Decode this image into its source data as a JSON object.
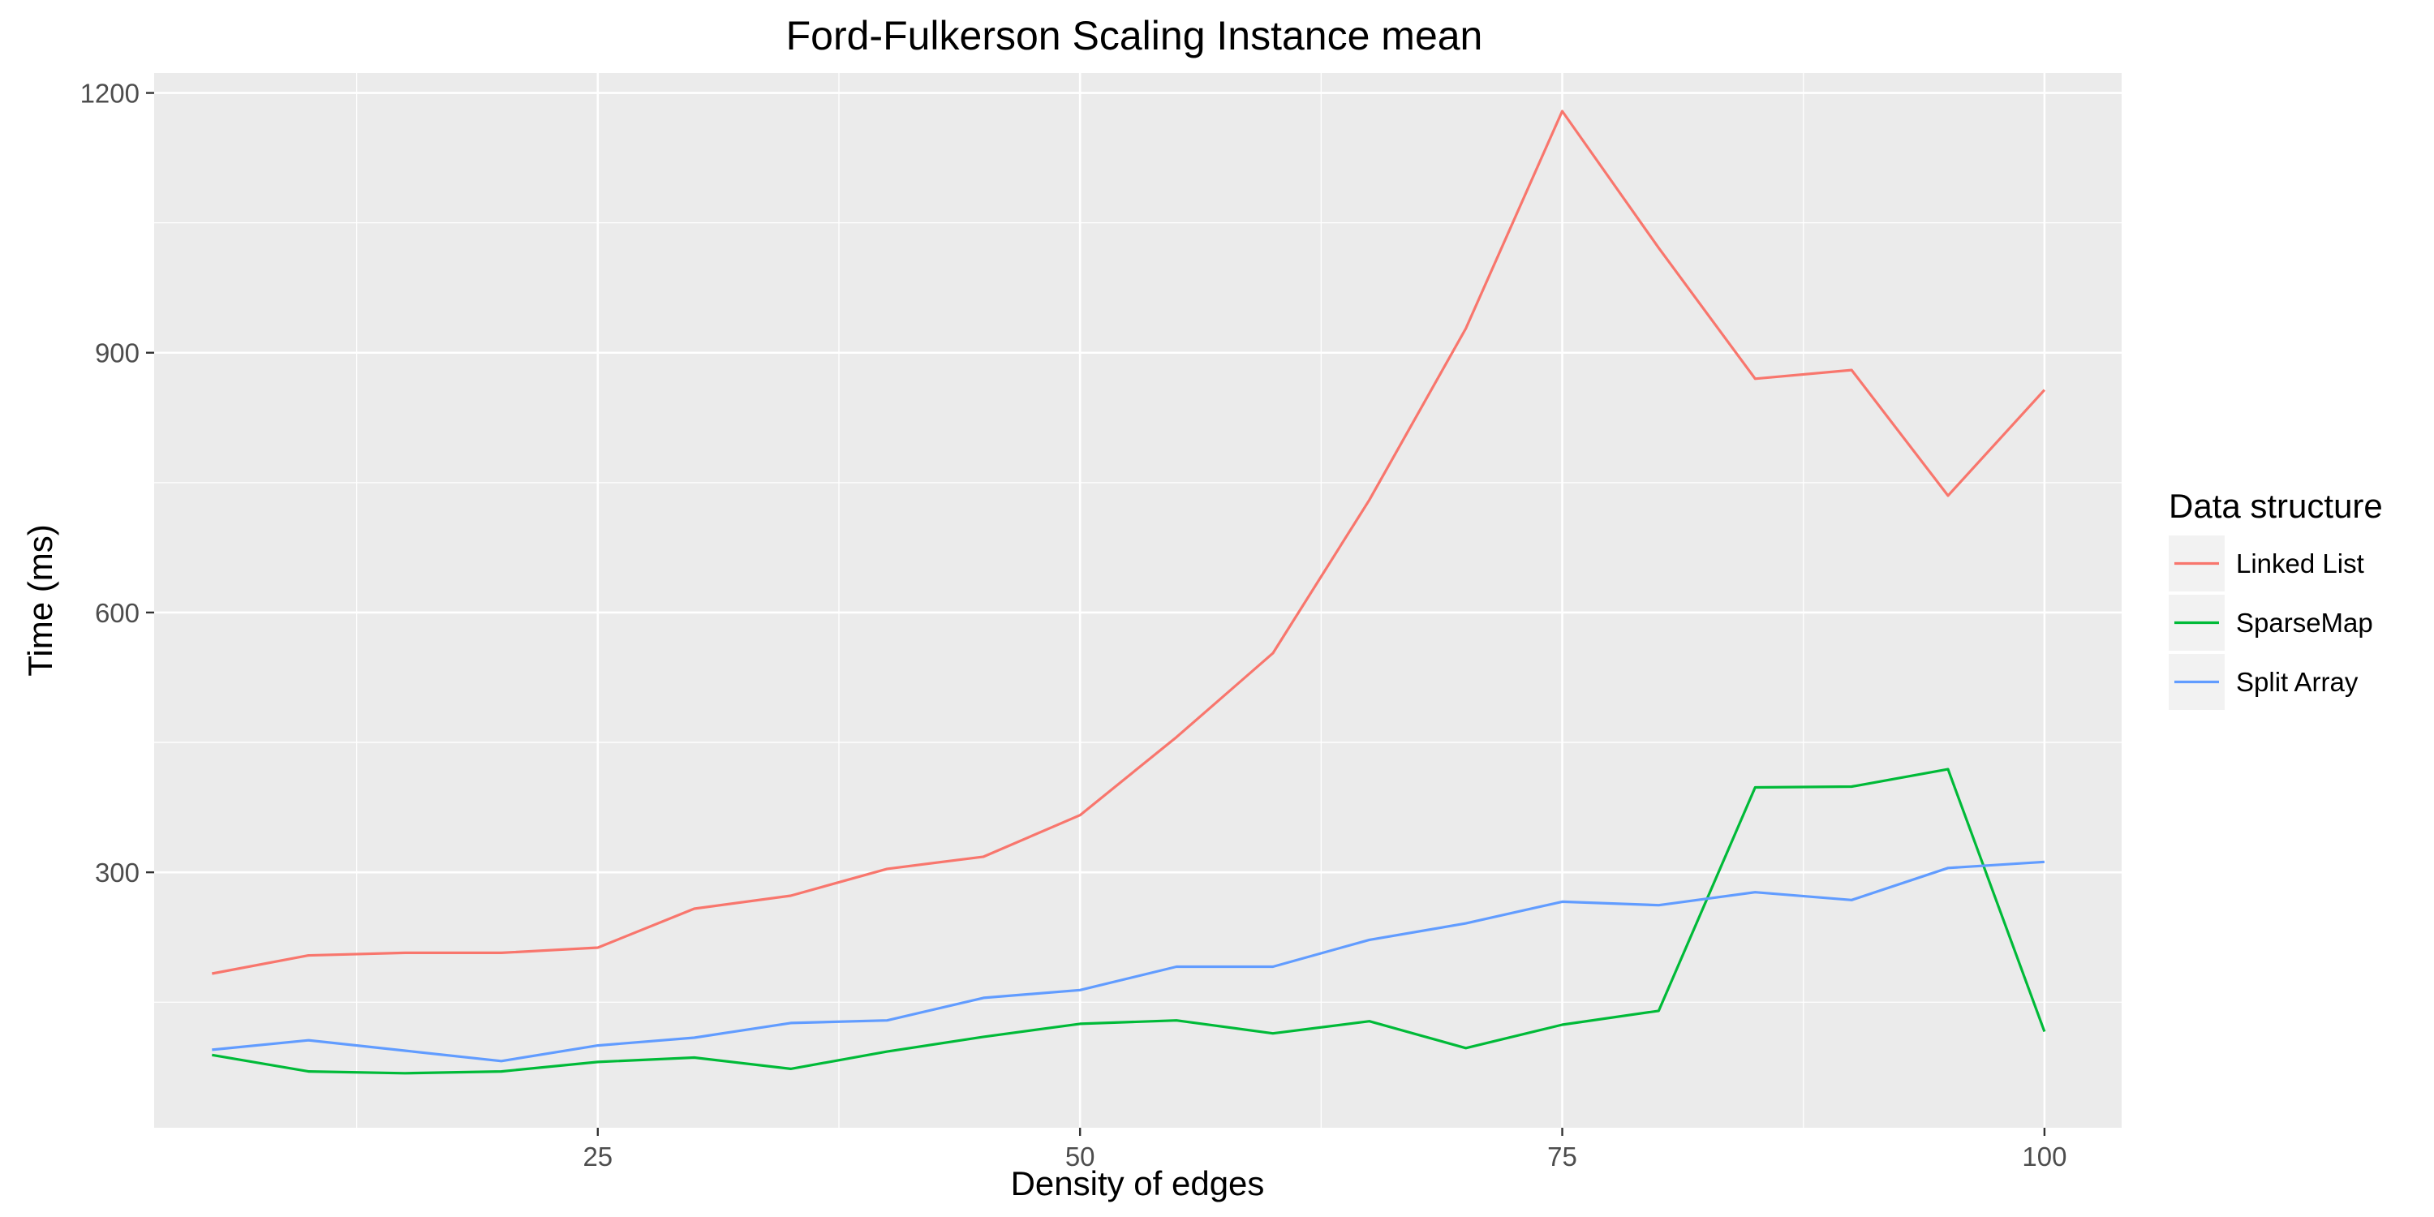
{
  "chart_data": {
    "type": "line",
    "title": "Ford-Fulkerson Scaling Instance mean",
    "xlabel": "Density of edges",
    "ylabel": "Time (ms)",
    "xlim": [
      2,
      104
    ],
    "ylim": [
      5,
      1223
    ],
    "x_ticks": [
      25,
      50,
      75,
      100
    ],
    "y_ticks": [
      300,
      600,
      900,
      1200
    ],
    "grid": true,
    "legend": {
      "title": "Data structure",
      "position": "right"
    },
    "x": [
      5,
      10,
      15,
      20,
      25,
      30,
      35,
      40,
      45,
      50,
      55,
      60,
      65,
      70,
      75,
      80,
      85,
      90,
      95,
      100
    ],
    "series": [
      {
        "name": "Linked List",
        "color": "#F8766D",
        "values": [
          183,
          204,
          207,
          207,
          213,
          258,
          273,
          304,
          318,
          366,
          456,
          553,
          730,
          928,
          1179,
          1021,
          870,
          880,
          735,
          857
        ]
      },
      {
        "name": "SparseMap",
        "color": "#00BA38",
        "values": [
          89,
          70,
          68,
          70,
          81,
          86,
          73,
          93,
          110,
          125,
          129,
          114,
          128,
          97,
          124,
          140,
          398,
          399,
          419,
          116
        ]
      },
      {
        "name": "Split Array",
        "color": "#619CFF",
        "values": [
          95,
          106,
          94,
          82,
          100,
          109,
          126,
          129,
          155,
          164,
          191,
          191,
          222,
          241,
          266,
          262,
          277,
          268,
          305,
          312
        ]
      }
    ]
  }
}
